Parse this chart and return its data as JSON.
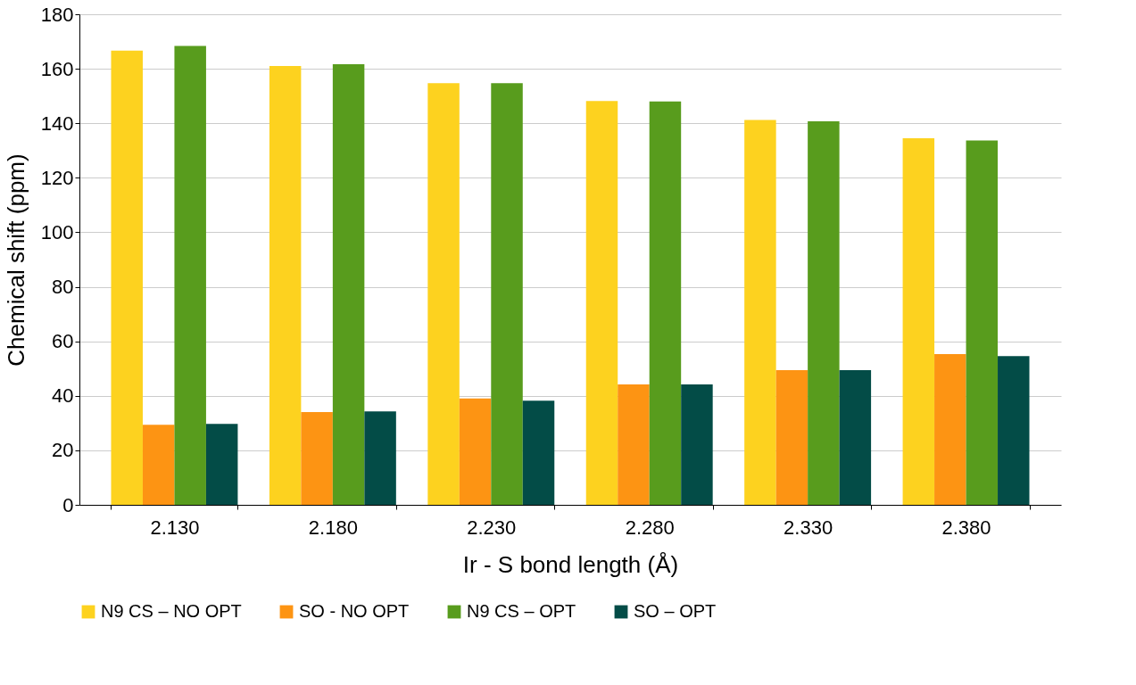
{
  "chart_data": {
    "type": "bar",
    "xlabel": "Ir - S bond length (Å)",
    "ylabel": "Chemical shift (ppm)",
    "categories": [
      "2.130",
      "2.180",
      "2.230",
      "2.280",
      "2.330",
      "2.380"
    ],
    "series": [
      {
        "name": "N9 CS – NO OPT",
        "color": "#fdd21f",
        "values": [
          166.7,
          161,
          154.7,
          148.2,
          141.2,
          134.5
        ]
      },
      {
        "name": "SO - NO OPT",
        "color": "#fd9413",
        "values": [
          29.4,
          34,
          39,
          44.2,
          49.4,
          55.3
        ]
      },
      {
        "name": "N9 CS – OPT",
        "color": "#589c1d",
        "values": [
          168.4,
          161.7,
          154.7,
          148,
          140.7,
          133.7
        ]
      },
      {
        "name": "SO – OPT",
        "color": "#034c47",
        "values": [
          29.7,
          34.3,
          38.2,
          44.2,
          49.4,
          54.6
        ]
      }
    ],
    "ylim": [
      0,
      180
    ],
    "yticks": [
      0,
      20,
      40,
      60,
      80,
      100,
      120,
      140,
      160,
      180
    ],
    "grid": "y",
    "legend": "bottom"
  }
}
